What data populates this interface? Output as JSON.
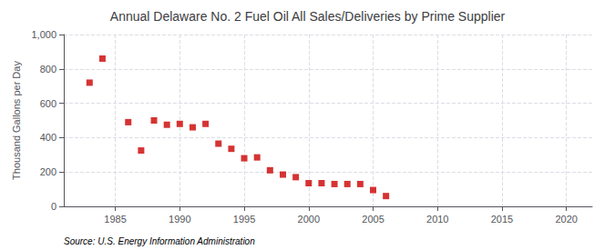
{
  "chart_data": {
    "type": "scatter",
    "title": "Annual Delaware No. 2 Fuel Oil All Sales/Deliveries by Prime Supplier",
    "ylabel": "Thousand Gallons per Day",
    "annotation": "Source: U.S. Energy Information Administration",
    "x": [
      1983,
      1984,
      1986,
      1987,
      1988,
      1989,
      1990,
      1991,
      1992,
      1993,
      1994,
      1995,
      1996,
      1997,
      1998,
      1999,
      2000,
      2001,
      2002,
      2003,
      2004,
      2005,
      2006
    ],
    "values": [
      720,
      860,
      490,
      325,
      500,
      475,
      480,
      460,
      480,
      365,
      335,
      280,
      285,
      210,
      185,
      170,
      135,
      135,
      130,
      130,
      130,
      95,
      60
    ],
    "color": "#cc0000",
    "marker": "square",
    "xlim": [
      1981,
      2022
    ],
    "ylim": [
      0,
      1000
    ],
    "xticks": [
      1985,
      1990,
      1995,
      2000,
      2005,
      2010,
      2015,
      2020
    ],
    "yticks": [
      0,
      200,
      400,
      600,
      800,
      {
        "value": 1000,
        "label": "1,000"
      }
    ],
    "grid": true
  }
}
